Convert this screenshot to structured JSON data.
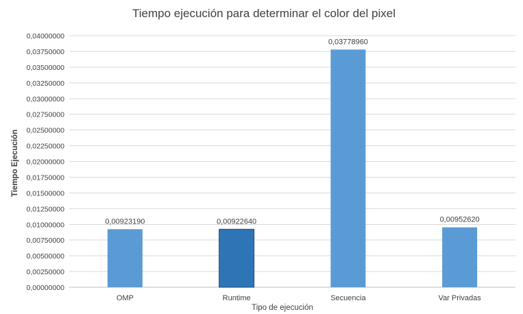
{
  "chart_data": {
    "type": "bar",
    "title": "Tiempo ejecución para determinar el color del pixel",
    "xlabel": "Tipo de ejecución",
    "ylabel": "Tiempo Ejecución",
    "categories": [
      "OMP",
      "Runtime",
      "Secuencia",
      "Var Privadas"
    ],
    "values": [
      0.0092319,
      0.0092264,
      0.0377896,
      0.0095262
    ],
    "data_labels": [
      "0,00923190",
      "0,00922640",
      "0,03778960",
      "0,00952620"
    ],
    "ylim": [
      0,
      0.04
    ],
    "y_ticks": [
      "0,00000000",
      "0,00250000",
      "0,00500000",
      "0,00750000",
      "0,01000000",
      "0,01250000",
      "0,01500000",
      "0,01750000",
      "0,02000000",
      "0,02250000",
      "0,02500000",
      "0,02750000",
      "0,03000000",
      "0,03250000",
      "0,03500000",
      "0,03750000",
      "0,04000000"
    ],
    "grid": true,
    "legend": "none",
    "colors": {
      "bar": "#5b9bd5",
      "bar_highlight": "#2e75b6",
      "bar_highlight_border": "#1f4e79",
      "grid": "#d9d9d9",
      "axis": "#bfbfbf"
    },
    "highlighted_index": 1
  }
}
